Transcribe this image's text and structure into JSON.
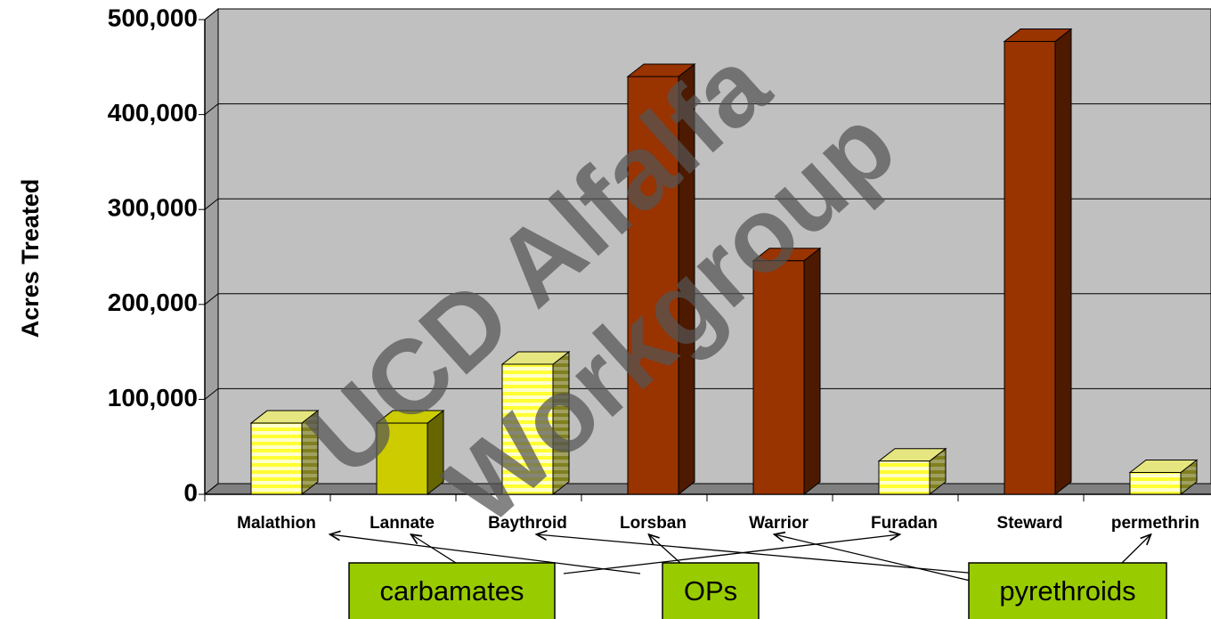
{
  "chart_data": {
    "type": "bar3d",
    "y_axis_label": "Acres Treated",
    "categories": [
      "Malathion",
      "Lannate",
      "Baythroid",
      "Lorsban",
      "Warrior",
      "Furadan",
      "Steward",
      "permethrin"
    ],
    "values": [
      75000,
      75000,
      137000,
      440000,
      246000,
      35000,
      477000,
      23000
    ],
    "colors": [
      "#ffff66",
      "#cccc00",
      "#ffff66",
      "#993300",
      "#993300",
      "#ffff66",
      "#993300",
      "#ffff66"
    ],
    "hatch": [
      true,
      false,
      true,
      false,
      false,
      true,
      false,
      true
    ],
    "ylim": [
      0,
      500000
    ],
    "yticks": [
      {
        "value": 0,
        "label": "0"
      },
      {
        "value": 100000,
        "label": "100,000"
      },
      {
        "value": 200000,
        "label": "200,000"
      },
      {
        "value": 300000,
        "label": "300,000"
      },
      {
        "value": 400000,
        "label": "400,000"
      },
      {
        "value": 500000,
        "label": "500,000"
      }
    ],
    "grid": true,
    "annotations": [
      {
        "text": "carbamates",
        "points_to": [
          1,
          5
        ]
      },
      {
        "text": "OPs",
        "points_to": [
          0,
          3
        ]
      },
      {
        "text": "pyrethroids",
        "points_to": [
          2,
          4,
          7
        ]
      }
    ],
    "watermark": [
      "UCD Alfalfa",
      "Workgroup"
    ]
  }
}
